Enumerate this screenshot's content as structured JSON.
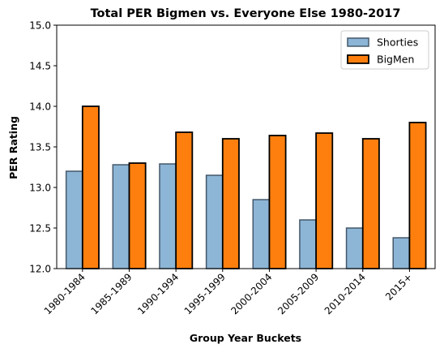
{
  "chart_data": {
    "type": "bar",
    "title": "Total PER Bigmen vs. Everyone Else 1980-2017",
    "xlabel": "Group Year Buckets",
    "ylabel": "PER Rating",
    "ylim": [
      12.0,
      15.0
    ],
    "yticks": [
      "12.0",
      "12.5",
      "13.0",
      "13.5",
      "14.0",
      "14.5",
      "15.0"
    ],
    "grid": false,
    "legend_position": "top-right",
    "categories": [
      "1980-1984",
      "1985-1989",
      "1990-1994",
      "1995-1999",
      "2000-2004",
      "2005-2009",
      "2010-2014",
      "2015+"
    ],
    "series": [
      {
        "name": "Shorties",
        "color": "#8db5d6",
        "edge": "#45586a",
        "values": [
          13.2,
          13.28,
          13.29,
          13.15,
          12.85,
          12.6,
          12.5,
          12.38
        ]
      },
      {
        "name": "BigMen",
        "color": "#ff7f0e",
        "edge": "#000000",
        "values": [
          14.0,
          13.3,
          13.68,
          13.6,
          13.64,
          13.67,
          13.6,
          13.8
        ]
      }
    ]
  }
}
